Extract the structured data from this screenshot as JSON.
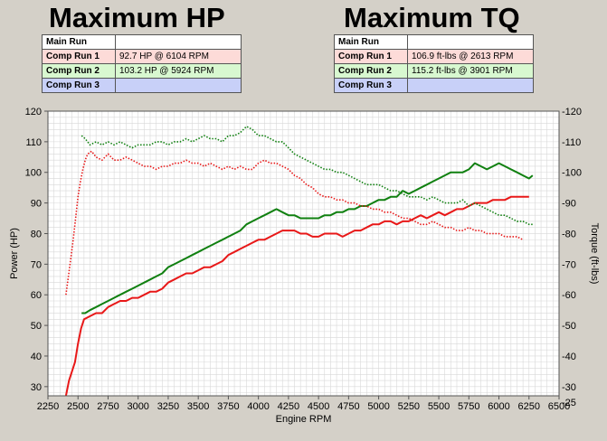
{
  "hp_panel": {
    "title": "Maximum HP",
    "rows": [
      {
        "label": "Main Run",
        "value": ""
      },
      {
        "label": "Comp Run 1",
        "value": "92.7 HP @ 6104 RPM"
      },
      {
        "label": "Comp Run 2",
        "value": "103.2 HP @ 5924 RPM"
      },
      {
        "label": "Comp Run 3",
        "value": ""
      }
    ]
  },
  "tq_panel": {
    "title": "Maximum TQ",
    "rows": [
      {
        "label": "Main Run",
        "value": ""
      },
      {
        "label": "Comp Run 1",
        "value": "106.9 ft-lbs @ 2613 RPM"
      },
      {
        "label": "Comp Run 2",
        "value": "115.2 ft-lbs @ 3901 RPM"
      },
      {
        "label": "Comp Run 3",
        "value": ""
      }
    ]
  },
  "colors": {
    "comp_run_1": "#e81818",
    "comp_run_2": "#108010",
    "plot_bg": "#ffffff",
    "grid": "#d8d8d8"
  },
  "chart_data": {
    "type": "line",
    "xlabel": "Engine RPM",
    "ylabel_left": "Power (HP)",
    "ylabel_right": "Torque (ft-lbs)",
    "xlim": [
      2250,
      6500
    ],
    "ylim": [
      27,
      120
    ],
    "grid": true,
    "x_ticks": [
      "2250",
      "2500",
      "2750",
      "3000",
      "3250",
      "3500",
      "3750",
      "4000",
      "4250",
      "4500",
      "4750",
      "5000",
      "5250",
      "5500",
      "5750",
      "6000",
      "6250",
      "6500"
    ],
    "y_ticks_left": [
      "30",
      "40",
      "50",
      "60",
      "70",
      "80",
      "90",
      "100",
      "110",
      "120"
    ],
    "y_ticks_right": [
      "-25",
      "-30",
      "-40",
      "-50",
      "-60",
      "-70",
      "-80",
      "-90",
      "-100",
      "-110",
      "-120"
    ],
    "series": [
      {
        "name": "Comp Run 1",
        "measure": "power",
        "style": "solid",
        "color": "#e81818",
        "x": [
          2400,
          2425,
          2450,
          2475,
          2500,
          2525,
          2550,
          2600,
          2650,
          2700,
          2750,
          2800,
          2850,
          2900,
          2950,
          3000,
          3050,
          3100,
          3150,
          3200,
          3250,
          3300,
          3350,
          3400,
          3450,
          3500,
          3550,
          3600,
          3650,
          3700,
          3750,
          3800,
          3850,
          3900,
          3950,
          4000,
          4050,
          4100,
          4150,
          4200,
          4250,
          4300,
          4350,
          4400,
          4450,
          4500,
          4550,
          4600,
          4650,
          4700,
          4750,
          4800,
          4850,
          4900,
          4950,
          5000,
          5050,
          5100,
          5150,
          5200,
          5250,
          5300,
          5350,
          5400,
          5450,
          5500,
          5550,
          5600,
          5650,
          5700,
          5750,
          5800,
          5850,
          5900,
          5950,
          6000,
          6050,
          6100,
          6150,
          6200,
          6250
        ],
        "y": [
          27,
          32,
          35,
          38,
          44,
          49,
          52,
          53,
          54,
          54,
          56,
          57,
          58,
          58,
          59,
          59,
          60,
          61,
          61,
          62,
          64,
          65,
          66,
          67,
          67,
          68,
          69,
          69,
          70,
          71,
          73,
          74,
          75,
          76,
          77,
          78,
          78,
          79,
          80,
          81,
          81,
          81,
          80,
          80,
          79,
          79,
          80,
          80,
          80,
          79,
          80,
          81,
          81,
          82,
          83,
          83,
          84,
          84,
          83,
          84,
          84,
          85,
          86,
          85,
          86,
          87,
          86,
          87,
          88,
          88,
          89,
          90,
          90,
          90,
          91,
          91,
          91,
          92,
          92,
          92,
          92
        ]
      },
      {
        "name": "Comp Run 2",
        "measure": "power",
        "style": "solid",
        "color": "#108010",
        "x": [
          2530,
          2560,
          2600,
          2650,
          2700,
          2750,
          2800,
          2850,
          2900,
          2950,
          3000,
          3050,
          3100,
          3150,
          3200,
          3250,
          3300,
          3350,
          3400,
          3450,
          3500,
          3550,
          3600,
          3650,
          3700,
          3750,
          3800,
          3850,
          3900,
          3950,
          4000,
          4050,
          4100,
          4150,
          4200,
          4250,
          4300,
          4350,
          4400,
          4450,
          4500,
          4550,
          4600,
          4650,
          4700,
          4750,
          4800,
          4850,
          4900,
          4950,
          5000,
          5050,
          5100,
          5150,
          5200,
          5250,
          5300,
          5350,
          5400,
          5450,
          5500,
          5550,
          5600,
          5650,
          5700,
          5750,
          5800,
          5850,
          5900,
          5950,
          6000,
          6050,
          6100,
          6150,
          6200,
          6250,
          6280
        ],
        "y": [
          54,
          54,
          55,
          56,
          57,
          58,
          59,
          60,
          61,
          62,
          63,
          64,
          65,
          66,
          67,
          69,
          70,
          71,
          72,
          73,
          74,
          75,
          76,
          77,
          78,
          79,
          80,
          81,
          83,
          84,
          85,
          86,
          87,
          88,
          87,
          86,
          86,
          85,
          85,
          85,
          85,
          86,
          86,
          87,
          87,
          88,
          88,
          89,
          89,
          90,
          91,
          91,
          92,
          92,
          94,
          93,
          94,
          95,
          96,
          97,
          98,
          99,
          100,
          100,
          100,
          101,
          103,
          102,
          101,
          102,
          103,
          102,
          101,
          100,
          99,
          98,
          99
        ]
      },
      {
        "name": "Comp Run 1",
        "measure": "torque",
        "style": "dotted",
        "color": "#e81818",
        "x": [
          2400,
          2420,
          2440,
          2460,
          2480,
          2500,
          2520,
          2540,
          2560,
          2580,
          2600,
          2613,
          2650,
          2700,
          2750,
          2800,
          2850,
          2900,
          2950,
          3000,
          3050,
          3100,
          3150,
          3200,
          3250,
          3300,
          3350,
          3400,
          3450,
          3500,
          3550,
          3600,
          3650,
          3700,
          3750,
          3800,
          3850,
          3900,
          3950,
          4000,
          4050,
          4100,
          4150,
          4200,
          4250,
          4300,
          4350,
          4400,
          4450,
          4500,
          4550,
          4600,
          4650,
          4700,
          4750,
          4800,
          4850,
          4900,
          4950,
          5000,
          5050,
          5100,
          5150,
          5200,
          5250,
          5300,
          5350,
          5400,
          5450,
          5500,
          5550,
          5600,
          5650,
          5700,
          5750,
          5800,
          5850,
          5900,
          5950,
          6000,
          6050,
          6100,
          6150,
          6200
        ],
        "y": [
          60,
          66,
          72,
          78,
          85,
          92,
          97,
          101,
          104,
          106,
          106.5,
          106.9,
          105,
          104,
          106,
          104,
          104,
          105,
          104,
          103,
          102,
          102,
          101,
          102,
          102,
          103,
          103,
          104,
          103,
          103,
          102,
          103,
          102,
          101,
          102,
          101,
          102,
          101,
          101,
          103,
          104,
          103,
          103,
          102,
          101,
          99,
          98,
          96,
          95,
          93,
          92,
          92,
          91,
          91,
          90,
          90,
          89,
          89,
          88,
          88,
          87,
          87,
          86,
          85,
          85,
          84,
          83,
          83,
          84,
          83,
          82,
          82,
          81,
          81,
          82,
          81,
          81,
          80,
          80,
          80,
          79,
          79,
          79,
          78
        ]
      },
      {
        "name": "Comp Run 2",
        "measure": "torque",
        "style": "dotted",
        "color": "#108010",
        "x": [
          2530,
          2560,
          2600,
          2650,
          2700,
          2750,
          2800,
          2850,
          2900,
          2950,
          3000,
          3050,
          3100,
          3150,
          3200,
          3250,
          3300,
          3350,
          3400,
          3450,
          3500,
          3550,
          3600,
          3650,
          3700,
          3750,
          3800,
          3850,
          3901,
          3950,
          4000,
          4050,
          4100,
          4150,
          4200,
          4250,
          4300,
          4350,
          4400,
          4450,
          4500,
          4550,
          4600,
          4650,
          4700,
          4750,
          4800,
          4850,
          4900,
          4950,
          5000,
          5050,
          5100,
          5150,
          5200,
          5250,
          5300,
          5350,
          5400,
          5450,
          5500,
          5550,
          5600,
          5650,
          5700,
          5750,
          5800,
          5850,
          5900,
          5950,
          6000,
          6050,
          6100,
          6150,
          6200,
          6250,
          6280
        ],
        "y": [
          112,
          111,
          109,
          110,
          109,
          110,
          109,
          110,
          109,
          108,
          109,
          109,
          109,
          110,
          110,
          109,
          110,
          110,
          111,
          110,
          111,
          112,
          111,
          111,
          110,
          112,
          112,
          113,
          115,
          114,
          112,
          112,
          111,
          110,
          110,
          108,
          106,
          105,
          104,
          103,
          102,
          101,
          101,
          100,
          100,
          99,
          98,
          97,
          96,
          96,
          96,
          95,
          94,
          94,
          93,
          92,
          92,
          92,
          91,
          92,
          91,
          90,
          90,
          90,
          91,
          89,
          90,
          89,
          88,
          87,
          86,
          86,
          85,
          84,
          84,
          83,
          83
        ]
      }
    ]
  }
}
